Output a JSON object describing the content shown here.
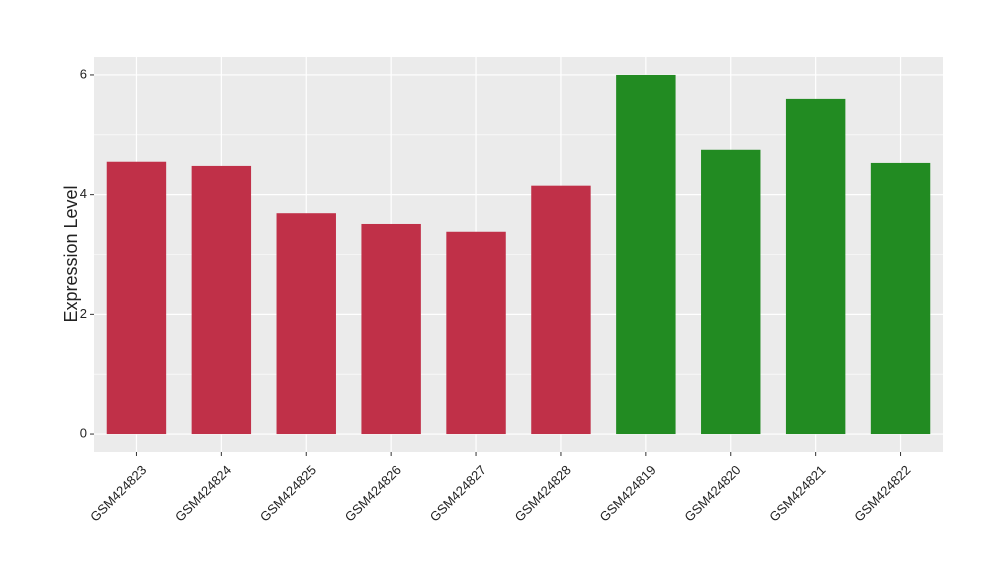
{
  "chart_data": {
    "type": "bar",
    "y_label": "Expression Level",
    "categories": [
      "GSM424823",
      "GSM424824",
      "GSM424825",
      "GSM424826",
      "GSM424827",
      "GSM424828",
      "GSM424819",
      "GSM424820",
      "GSM424821",
      "GSM424822"
    ],
    "values": [
      4.55,
      4.48,
      3.69,
      3.51,
      3.38,
      4.15,
      6.0,
      4.75,
      5.6,
      4.53
    ],
    "colors": [
      "#c03048",
      "#c03048",
      "#c03048",
      "#c03048",
      "#c03048",
      "#c03048",
      "#228b22",
      "#228b22",
      "#228b22",
      "#228b22"
    ],
    "ylim": [
      -0.3,
      6.3
    ],
    "yticks": [
      0,
      2,
      4,
      6
    ],
    "minor_yticks": [
      1,
      3,
      5
    ],
    "grid": true
  }
}
